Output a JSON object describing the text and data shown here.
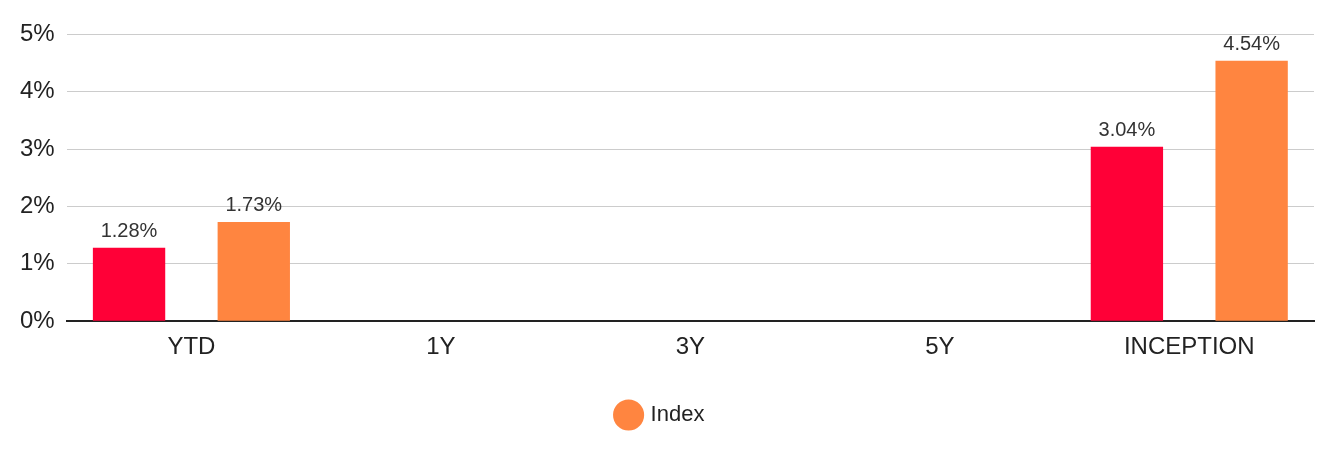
{
  "chart_data": {
    "type": "bar",
    "categories": [
      "YTD",
      "1Y",
      "3Y",
      "5Y",
      "INCEPTION"
    ],
    "series": [
      {
        "color": "#ff0037",
        "values": [
          1.28,
          null,
          null,
          null,
          3.04
        ],
        "value_labels": [
          "1.28%",
          null,
          null,
          null,
          "3.04%"
        ]
      },
      {
        "name": "Index",
        "color": "#ff8540",
        "values": [
          1.73,
          null,
          null,
          null,
          4.54
        ],
        "value_labels": [
          "1.73%",
          null,
          null,
          null,
          "4.54%"
        ]
      }
    ],
    "ylim": [
      0,
      5
    ],
    "yticks": [
      {
        "value": 0,
        "label": "0%"
      },
      {
        "value": 1,
        "label": "1%"
      },
      {
        "value": 2,
        "label": "2%"
      },
      {
        "value": 3,
        "label": "3%"
      },
      {
        "value": 4,
        "label": "4%"
      },
      {
        "value": 5,
        "label": "5%"
      }
    ],
    "grid": "y",
    "legend": "bottom"
  }
}
